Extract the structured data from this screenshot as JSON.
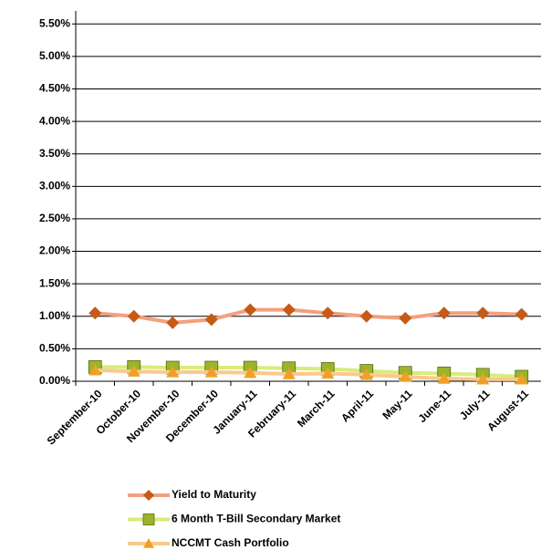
{
  "chart_data": {
    "type": "line",
    "categories": [
      "September-10",
      "October-10",
      "November-10",
      "December-10",
      "January-11",
      "February-11",
      "March-11",
      "April-11",
      "May-11",
      "June-11",
      "July-11",
      "August-11"
    ],
    "series": [
      {
        "name": "Yield to Maturity",
        "color": "#f4a07c",
        "marker_color": "#c65a18",
        "marker": "diamond",
        "values": [
          1.05,
          1.0,
          0.9,
          0.95,
          1.1,
          1.1,
          1.05,
          1.0,
          0.97,
          1.05,
          1.05,
          1.03
        ]
      },
      {
        "name": "6 Month T-Bill Secondary Market",
        "color": "#d8ec7c",
        "marker_color": "#9bb42c",
        "marker": "square",
        "values": [
          0.22,
          0.22,
          0.21,
          0.21,
          0.21,
          0.2,
          0.19,
          0.16,
          0.13,
          0.12,
          0.1,
          0.07
        ]
      },
      {
        "name": "NCCMT Cash Portfolio",
        "color": "#fbc98c",
        "marker_color": "#f0a028",
        "marker": "triangle",
        "values": [
          0.17,
          0.15,
          0.14,
          0.14,
          0.13,
          0.11,
          0.12,
          0.1,
          0.07,
          0.04,
          0.03,
          0.03
        ]
      }
    ],
    "ylim": [
      0,
      5.7
    ],
    "yticks": [
      {
        "value": 0,
        "label": "0.00%"
      },
      {
        "value": 0.5,
        "label": "0.50%"
      },
      {
        "value": 1.0,
        "label": "1.00%"
      },
      {
        "value": 1.5,
        "label": "1.50%"
      },
      {
        "value": 2.0,
        "label": "2.00%"
      },
      {
        "value": 2.5,
        "label": "2.50%"
      },
      {
        "value": 3.0,
        "label": "3.00%"
      },
      {
        "value": 3.5,
        "label": "3.50%"
      },
      {
        "value": 4.0,
        "label": "4.00%"
      },
      {
        "value": 4.5,
        "label": "4.50%"
      },
      {
        "value": 5.0,
        "label": "5.00%"
      },
      {
        "value": 5.5,
        "label": "5.50%"
      }
    ],
    "grid": true,
    "legend": "bottom"
  }
}
